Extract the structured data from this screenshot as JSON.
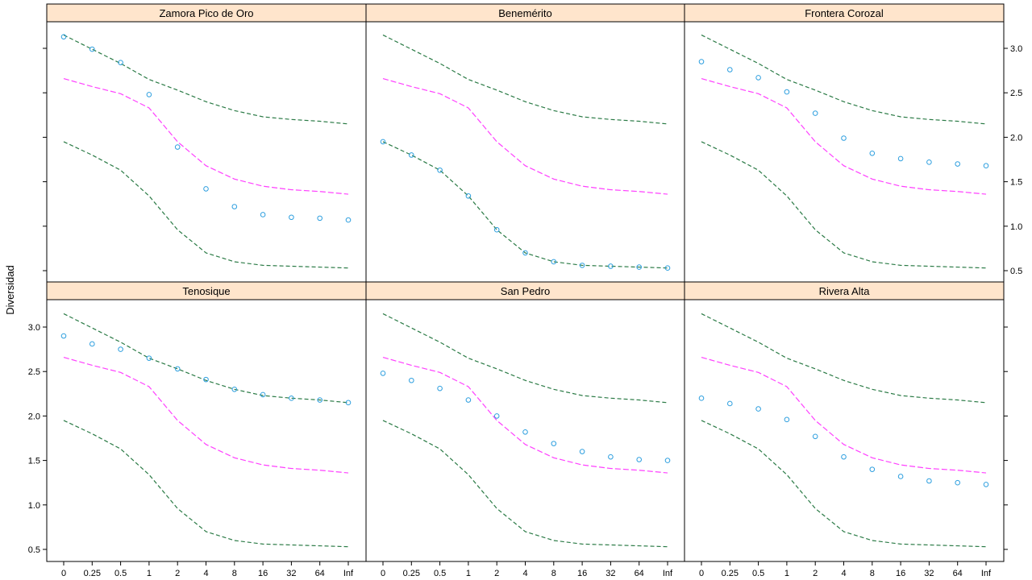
{
  "chart_data": {
    "type": "scatter",
    "ylabel": "Diversidad",
    "xlabel": "",
    "x_categories": [
      "0",
      "0.25",
      "0.5",
      "1",
      "2",
      "4",
      "8",
      "16",
      "32",
      "64",
      "Inf"
    ],
    "yticks": [
      "0.5",
      "1.0",
      "1.5",
      "2.0",
      "2.5",
      "3.0"
    ],
    "ytick_values": [
      0.5,
      1.0,
      1.5,
      2.0,
      2.5,
      3.0
    ],
    "ylim": [
      0.42,
      3.3
    ],
    "colors": {
      "points": "#2e9fdf",
      "envelope": "#2a7a45",
      "expected": "#ff40ff",
      "strip": "#ffe5cc"
    },
    "reference_lines": {
      "upper": [
        3.15,
        2.99,
        2.83,
        2.65,
        2.53,
        2.4,
        2.3,
        2.23,
        2.2,
        2.18,
        2.15
      ],
      "expected": [
        2.66,
        2.57,
        2.49,
        2.33,
        1.95,
        1.68,
        1.53,
        1.45,
        1.41,
        1.39,
        1.36
      ],
      "lower": [
        1.95,
        1.8,
        1.63,
        1.34,
        0.96,
        0.7,
        0.6,
        0.56,
        0.55,
        0.54,
        0.53
      ]
    },
    "panels": [
      {
        "title": "Zamora Pico de Oro",
        "values": [
          3.13,
          2.99,
          2.84,
          2.48,
          1.89,
          1.42,
          1.22,
          1.13,
          1.1,
          1.09,
          1.07
        ]
      },
      {
        "title": "Benemérito",
        "values": [
          1.95,
          1.8,
          1.63,
          1.34,
          0.96,
          0.7,
          0.6,
          0.56,
          0.55,
          0.54,
          0.53
        ]
      },
      {
        "title": "Frontera Corozal",
        "values": [
          2.85,
          2.76,
          2.67,
          2.51,
          2.27,
          1.99,
          1.82,
          1.76,
          1.72,
          1.7,
          1.68
        ]
      },
      {
        "title": "Tenosique",
        "values": [
          2.9,
          2.81,
          2.75,
          2.65,
          2.53,
          2.41,
          2.3,
          2.24,
          2.2,
          2.18,
          2.15
        ]
      },
      {
        "title": "San Pedro",
        "values": [
          2.48,
          2.4,
          2.31,
          2.18,
          2.0,
          1.82,
          1.69,
          1.6,
          1.54,
          1.51,
          1.5
        ]
      },
      {
        "title": "Rivera Alta",
        "values": [
          2.2,
          2.14,
          2.08,
          1.96,
          1.77,
          1.54,
          1.4,
          1.32,
          1.27,
          1.25,
          1.23
        ]
      }
    ]
  }
}
